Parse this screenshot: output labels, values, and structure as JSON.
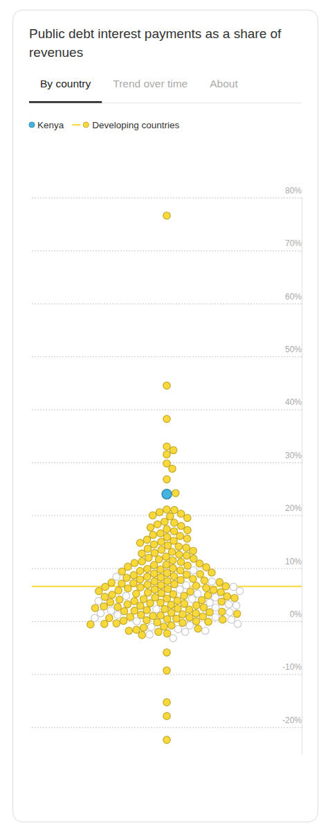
{
  "chart_data": {
    "type": "beeswarm",
    "title": "Public debt interest payments as a share of revenues",
    "tabs": [
      "By country",
      "Trend over time",
      "About"
    ],
    "series": [
      {
        "name": "Kenya",
        "color": "#45b3e0",
        "values": [
          24.0
        ]
      },
      {
        "name": "Developing countries",
        "color": "#f9d83a",
        "average": 6.6,
        "values": [
          76.6,
          44.5,
          38.2,
          33.0,
          32.3,
          31.5,
          29.8,
          28.8,
          26.8,
          24.2,
          21.1,
          21.0,
          20.6,
          20.3,
          20.0,
          19.8,
          19.5,
          18.8,
          18.6,
          18.3,
          18.0,
          17.7,
          17.4,
          17.2,
          17.0,
          16.6,
          16.3,
          16.1,
          15.9,
          15.6,
          15.4,
          15.2,
          15.0,
          14.8,
          14.5,
          14.3,
          14.1,
          13.9,
          13.7,
          13.5,
          13.3,
          13.1,
          12.9,
          12.8,
          12.6,
          12.4,
          12.2,
          12.0,
          11.8,
          11.7,
          11.5,
          11.3,
          11.2,
          11.0,
          10.9,
          10.7,
          10.6,
          10.5,
          10.3,
          10.2,
          10.0,
          9.9,
          9.8,
          9.6,
          9.5,
          9.4,
          9.2,
          9.1,
          9.0,
          8.9,
          8.8,
          8.7,
          8.5,
          8.4,
          8.3,
          8.2,
          8.0,
          7.9,
          7.8,
          7.7,
          7.6,
          7.5,
          7.4,
          7.3,
          7.2,
          7.1,
          7.0,
          6.9,
          6.8,
          6.7,
          6.6,
          6.5,
          6.4,
          6.3,
          6.2,
          6.1,
          6.0,
          5.9,
          5.8,
          5.7,
          5.6,
          5.5,
          5.4,
          5.3,
          5.2,
          5.1,
          5.0,
          4.9,
          4.8,
          4.7,
          4.6,
          4.5,
          4.4,
          4.3,
          4.2,
          4.1,
          4.0,
          3.9,
          3.8,
          3.7,
          3.6,
          3.5,
          3.4,
          3.3,
          3.2,
          3.1,
          3.0,
          2.9,
          2.8,
          2.7,
          2.6,
          2.5,
          2.4,
          2.3,
          2.2,
          2.1,
          2.0,
          1.9,
          1.8,
          1.7,
          1.6,
          1.5,
          1.4,
          1.3,
          1.2,
          1.1,
          1.0,
          0.9,
          0.8,
          0.7,
          0.6,
          0.5,
          0.4,
          0.3,
          0.2,
          0.1,
          0.0,
          -0.1,
          -0.2,
          -0.3,
          -0.4,
          -0.5,
          -0.6,
          -0.8,
          -1.0,
          -1.2,
          -1.4,
          -1.6,
          -1.8,
          -2.0,
          -2.3,
          -2.6,
          -5.9,
          -9.3,
          -15.3,
          -17.9,
          -22.4
        ]
      },
      {
        "color": "#ffffff",
        "values": [
          9.6,
          8.4,
          7.5,
          6.8,
          6.5,
          6.0,
          5.7,
          5.2,
          4.8,
          4.5,
          4.2,
          3.8,
          3.5,
          3.2,
          3.0,
          2.6,
          2.3,
          2.0,
          1.7,
          1.5,
          1.2,
          0.8,
          0.6,
          0.3,
          0.0,
          -0.5,
          -0.8,
          -1.1,
          -1.5,
          -1.8,
          -2.0,
          -2.5,
          -3.2
        ]
      }
    ],
    "ylim": [
      -25,
      80
    ],
    "yticks": [
      {
        "value": 80,
        "label": "80%"
      },
      {
        "value": 70,
        "label": "70%"
      },
      {
        "value": 60,
        "label": "60%"
      },
      {
        "value": 50,
        "label": "50%"
      },
      {
        "value": 40,
        "label": "40%"
      },
      {
        "value": 30,
        "label": "30%"
      },
      {
        "value": 20,
        "label": "20%"
      },
      {
        "value": 10,
        "label": "10%"
      },
      {
        "value": 0,
        "label": "0%"
      },
      {
        "value": -10,
        "label": "-10%"
      },
      {
        "value": -20,
        "label": "-20%"
      }
    ],
    "grid": true,
    "legend": "top-left"
  }
}
